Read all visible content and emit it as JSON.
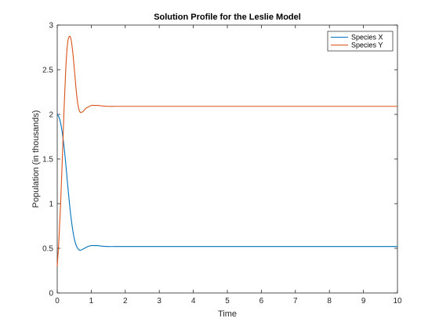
{
  "chart_data": {
    "type": "line",
    "title": "Solution Profile for the Leslie Model",
    "xlabel": "Time",
    "ylabel": "Population (in thousands)",
    "xlim": [
      0,
      10
    ],
    "ylim": [
      0,
      3
    ],
    "xticks": [
      0,
      1,
      2,
      3,
      4,
      5,
      6,
      7,
      8,
      9,
      10
    ],
    "yticks": [
      0,
      0.5,
      1,
      1.5,
      2,
      2.5,
      3
    ],
    "grid": false,
    "legend_position": "top-right",
    "series": [
      {
        "name": "Species X",
        "color": "#0072BD",
        "x": [
          0,
          0.05,
          0.1,
          0.15,
          0.2,
          0.25,
          0.3,
          0.35,
          0.4,
          0.45,
          0.5,
          0.55,
          0.6,
          0.65,
          0.7,
          0.75,
          0.8,
          0.9,
          1.0,
          1.1,
          1.2,
          1.3,
          1.5,
          1.7,
          2.0,
          2.5,
          3.0,
          4.0,
          5.0,
          6.0,
          7.0,
          8.0,
          9.0,
          10.0
        ],
        "y": [
          2.0,
          1.97,
          1.9,
          1.79,
          1.64,
          1.45,
          1.24,
          1.04,
          0.86,
          0.72,
          0.61,
          0.54,
          0.5,
          0.48,
          0.48,
          0.49,
          0.5,
          0.52,
          0.53,
          0.53,
          0.53,
          0.525,
          0.52,
          0.52,
          0.52,
          0.52,
          0.52,
          0.52,
          0.52,
          0.52,
          0.52,
          0.52,
          0.52,
          0.52
        ]
      },
      {
        "name": "Species Y",
        "color": "#D95319",
        "x": [
          0,
          0.05,
          0.1,
          0.15,
          0.2,
          0.25,
          0.3,
          0.35,
          0.4,
          0.45,
          0.5,
          0.55,
          0.6,
          0.65,
          0.7,
          0.75,
          0.8,
          0.85,
          0.9,
          1.0,
          1.1,
          1.2,
          1.3,
          1.5,
          1.7,
          2.0,
          2.5,
          3.0,
          4.0,
          5.0,
          6.0,
          7.0,
          8.0,
          9.0,
          10.0
        ],
        "y": [
          0.3,
          0.6,
          1.0,
          1.5,
          2.05,
          2.5,
          2.78,
          2.87,
          2.85,
          2.72,
          2.52,
          2.3,
          2.13,
          2.04,
          2.02,
          2.03,
          2.05,
          2.07,
          2.08,
          2.1,
          2.1,
          2.1,
          2.095,
          2.09,
          2.09,
          2.09,
          2.09,
          2.09,
          2.09,
          2.09,
          2.09,
          2.09,
          2.09,
          2.09,
          2.09
        ]
      }
    ]
  }
}
